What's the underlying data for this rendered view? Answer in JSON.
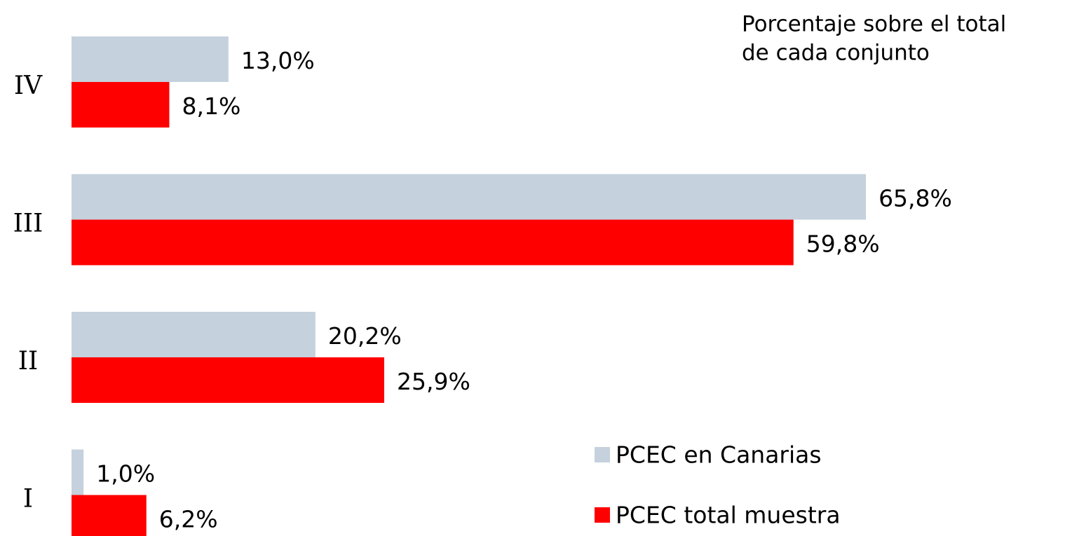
{
  "chart_data": {
    "type": "bar",
    "orientation": "horizontal",
    "title": [
      "Porcentaje sobre el total",
      "de cada conjunto"
    ],
    "categories": [
      "IV",
      "III",
      "II",
      "I"
    ],
    "series": [
      {
        "name": "PCEC en Canarias",
        "color": "#c5d1dc",
        "values": [
          13.0,
          65.8,
          20.2,
          1.0
        ],
        "value_labels": [
          "13,0%",
          "65,8%",
          "20,2%",
          "1,0%"
        ]
      },
      {
        "name": "PCEC total muestra",
        "color": "#ff0000",
        "values": [
          8.1,
          59.8,
          25.9,
          6.2
        ],
        "value_labels": [
          "8,1%",
          "59,8%",
          "25,9%",
          "6,2%"
        ]
      }
    ],
    "legend": "lower right"
  }
}
